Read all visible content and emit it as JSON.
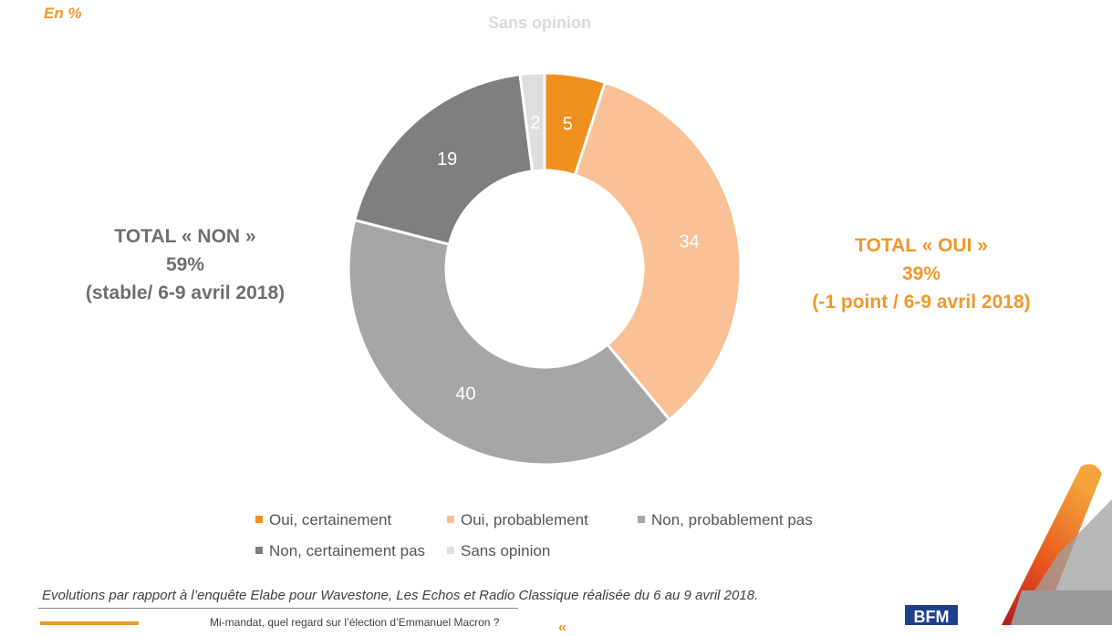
{
  "header": {
    "unit": "En  %",
    "top_label": "Sans opinion"
  },
  "totals": {
    "non": {
      "line1": "TOTAL « NON »",
      "line2": "59%",
      "line3": "(stable/ 6-9 avril 2018)"
    },
    "oui": {
      "line1": "TOTAL « OUI »",
      "line2": "39%",
      "line3": "(-1 point / 6-9 avril 2018)"
    }
  },
  "chart_data": {
    "type": "pie",
    "donut": true,
    "start": "12 o'clock, clockwise",
    "categories": [
      "Oui, certainement",
      "Oui, probablement",
      "Non, probablement pas",
      "Non, certainement pas",
      "Sans opinion"
    ],
    "values": [
      5,
      34,
      40,
      19,
      2
    ],
    "colors": [
      "#f0901e",
      "#f9c195",
      "#a6a6a6",
      "#7f7f7f",
      "#dedede"
    ],
    "legend_position": "bottom"
  },
  "footer": {
    "note": "Evolutions par rapport à l’enquête Elabe pour Wavestone, Les Echos et Radio Classique réalisée du 6 au 9 avril 2018.",
    "cut_text": "Mi-mandat, quel regard sur l’élection d’Emmanuel Macron ?",
    "bfm_logo": "BFM"
  },
  "colors": {
    "accent_orange": "#f0972b",
    "grey_text": "#6f6f6f"
  }
}
